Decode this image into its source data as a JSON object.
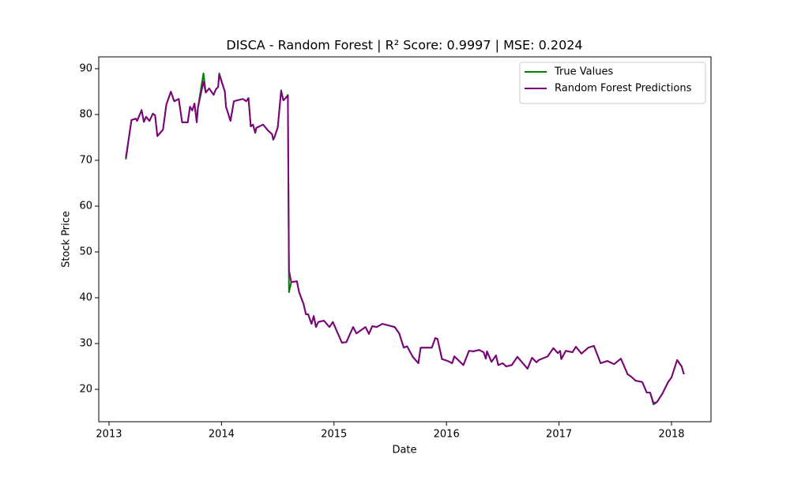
{
  "chart_data": {
    "type": "line",
    "title": "DISCA - Random Forest | R² Score: 0.9997 | MSE: 0.2024",
    "x_label": "Date",
    "y_label": "Stock Price",
    "x": [
      2013.15,
      2013.2,
      2013.24,
      2013.25,
      2013.29,
      2013.31,
      2013.33,
      2013.36,
      2013.39,
      2013.41,
      2013.43,
      2013.48,
      2013.51,
      2013.55,
      2013.58,
      2013.62,
      2013.65,
      2013.7,
      2013.72,
      2013.74,
      2013.76,
      2013.78,
      2013.79,
      2013.84,
      2013.86,
      2013.89,
      2013.93,
      2013.95,
      2013.97,
      2013.98,
      2014.03,
      2014.04,
      2014.08,
      2014.11,
      2014.14,
      2014.19,
      2014.22,
      2014.24,
      2014.26,
      2014.28,
      2014.3,
      2014.31,
      2014.37,
      2014.41,
      2014.45,
      2014.46,
      2014.47,
      2014.5,
      2014.53,
      2014.55,
      2014.57,
      2014.59,
      2014.6,
      2014.62,
      2014.67,
      2014.69,
      2014.73,
      2014.75,
      2014.77,
      2014.8,
      2014.82,
      2014.84,
      2014.86,
      2014.91,
      2014.96,
      2014.99,
      2015.07,
      2015.11,
      2015.17,
      2015.2,
      2015.28,
      2015.31,
      2015.34,
      2015.38,
      2015.43,
      2015.54,
      2015.58,
      2015.62,
      2015.65,
      2015.7,
      2015.75,
      2015.77,
      2015.87,
      2015.9,
      2015.92,
      2015.96,
      2016.01,
      2016.05,
      2016.07,
      2016.15,
      2016.2,
      2016.24,
      2016.29,
      2016.33,
      2016.35,
      2016.36,
      2016.4,
      2016.44,
      2016.46,
      2016.5,
      2016.53,
      2016.58,
      2016.63,
      2016.72,
      2016.76,
      2016.8,
      2016.82,
      2016.9,
      2016.95,
      2016.99,
      2017.01,
      2017.02,
      2017.06,
      2017.12,
      2017.15,
      2017.2,
      2017.26,
      2017.31,
      2017.37,
      2017.43,
      2017.49,
      2017.55,
      2017.61,
      2017.65,
      2017.68,
      2017.74,
      2017.78,
      2017.81,
      2017.84,
      2017.87,
      2017.92,
      2017.97,
      2018.0,
      2018.05,
      2018.09,
      2018.11
    ],
    "series": [
      {
        "name": "True Values",
        "color": "#008000",
        "values": [
          70.2,
          78.8,
          79.1,
          78.6,
          81.0,
          78.4,
          79.5,
          78.6,
          80.2,
          79.8,
          75.3,
          76.7,
          82.2,
          85.0,
          82.9,
          83.4,
          78.3,
          78.3,
          81.7,
          80.9,
          82.4,
          78.3,
          81.4,
          89.0,
          84.8,
          85.7,
          84.3,
          85.5,
          86.0,
          89.0,
          85.0,
          81.7,
          78.6,
          82.9,
          83.1,
          83.4,
          82.9,
          83.6,
          77.4,
          77.8,
          76.0,
          77.1,
          77.8,
          76.6,
          75.7,
          74.5,
          75.0,
          77.2,
          85.3,
          83.1,
          83.6,
          84.3,
          41.2,
          43.4,
          43.6,
          41.2,
          38.6,
          36.4,
          36.4,
          34.3,
          36.0,
          33.6,
          34.7,
          35.0,
          33.6,
          34.7,
          30.2,
          30.3,
          33.6,
          32.2,
          33.6,
          32.1,
          33.8,
          33.6,
          34.3,
          33.6,
          32.2,
          29.1,
          29.4,
          27.1,
          25.7,
          29.1,
          29.1,
          31.2,
          31.0,
          26.6,
          26.2,
          25.7,
          27.2,
          25.3,
          28.4,
          28.3,
          28.6,
          28.1,
          26.7,
          28.3,
          26.0,
          27.4,
          25.3,
          25.7,
          25.0,
          25.3,
          27.1,
          24.5,
          26.9,
          25.9,
          26.4,
          27.2,
          29.0,
          27.9,
          28.4,
          26.6,
          28.4,
          28.1,
          29.3,
          27.8,
          29.1,
          29.5,
          25.7,
          26.2,
          25.5,
          26.7,
          23.3,
          22.6,
          21.9,
          21.6,
          19.3,
          19.3,
          16.7,
          17.2,
          19.1,
          21.6,
          22.6,
          26.4,
          25.0,
          23.3
        ]
      },
      {
        "name": "Random Forest Predictions",
        "color": "#800080",
        "values": [
          70.6,
          78.8,
          79.1,
          78.6,
          80.9,
          78.4,
          79.5,
          78.6,
          80.2,
          79.8,
          75.3,
          76.7,
          82.2,
          85.0,
          82.9,
          83.4,
          78.3,
          78.3,
          81.7,
          80.9,
          82.4,
          78.3,
          81.4,
          87.2,
          84.8,
          85.7,
          84.3,
          85.5,
          86.0,
          88.7,
          85.0,
          81.7,
          78.6,
          82.9,
          83.1,
          83.4,
          82.9,
          83.6,
          77.4,
          77.8,
          76.0,
          77.1,
          77.8,
          76.6,
          75.7,
          74.5,
          75.0,
          77.2,
          85.1,
          83.1,
          83.6,
          84.1,
          46.0,
          43.4,
          43.6,
          41.2,
          38.6,
          36.4,
          36.4,
          34.3,
          36.0,
          33.6,
          34.7,
          35.0,
          33.6,
          34.7,
          30.2,
          30.3,
          33.6,
          32.2,
          33.6,
          32.1,
          33.8,
          33.6,
          34.3,
          33.6,
          32.2,
          29.1,
          29.4,
          27.1,
          25.7,
          29.1,
          29.1,
          31.2,
          31.0,
          26.6,
          26.2,
          25.7,
          27.2,
          25.3,
          28.4,
          28.3,
          28.6,
          28.1,
          26.7,
          28.3,
          26.0,
          27.4,
          25.3,
          25.7,
          25.0,
          25.3,
          27.1,
          24.5,
          26.9,
          25.9,
          26.4,
          27.2,
          29.0,
          27.9,
          28.4,
          26.6,
          28.4,
          28.1,
          29.3,
          27.8,
          29.1,
          29.5,
          25.7,
          26.2,
          25.5,
          26.7,
          23.3,
          22.6,
          21.9,
          21.6,
          19.3,
          19.3,
          17.0,
          17.2,
          19.1,
          21.6,
          22.6,
          26.4,
          25.0,
          23.3
        ]
      }
    ],
    "xlim": [
      2012.909,
      2018.351
    ],
    "xticks": [
      2013,
      2014,
      2015,
      2016,
      2017,
      2018
    ],
    "ylim": [
      12.93,
      92.59
    ],
    "yticks": [
      20,
      30,
      40,
      50,
      60,
      70,
      80,
      90
    ],
    "legend": "upper right"
  }
}
